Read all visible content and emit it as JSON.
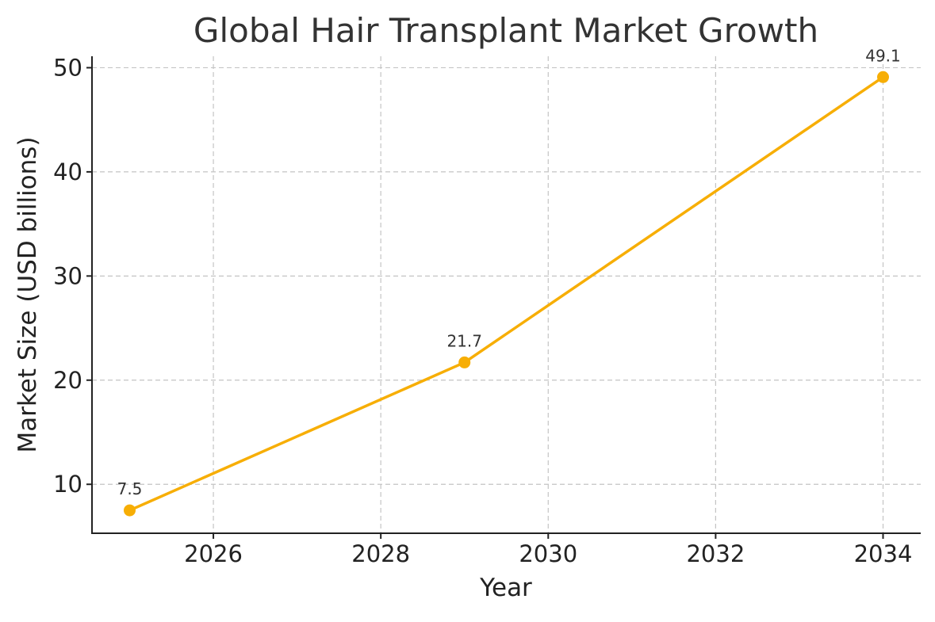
{
  "chart_data": {
    "type": "line",
    "title": "Global Hair Transplant Market Growth",
    "xlabel": "Year",
    "ylabel": "Market Size (USD billions)",
    "x": [
      2025,
      2029,
      2034
    ],
    "series": [
      {
        "values": [
          7.5,
          21.7,
          49.1
        ],
        "color": "#F7AE05"
      }
    ],
    "data_labels": [
      "7.5",
      "21.7",
      "49.1"
    ],
    "xticks": [
      2026,
      2028,
      2030,
      2032,
      2034
    ],
    "yticks": [
      10,
      20,
      30,
      40,
      50
    ],
    "xlim": [
      2024.55,
      2034.45
    ],
    "ylim": [
      5.3,
      51.1
    ],
    "grid": true,
    "grid_style": "dashed",
    "legend": false
  }
}
